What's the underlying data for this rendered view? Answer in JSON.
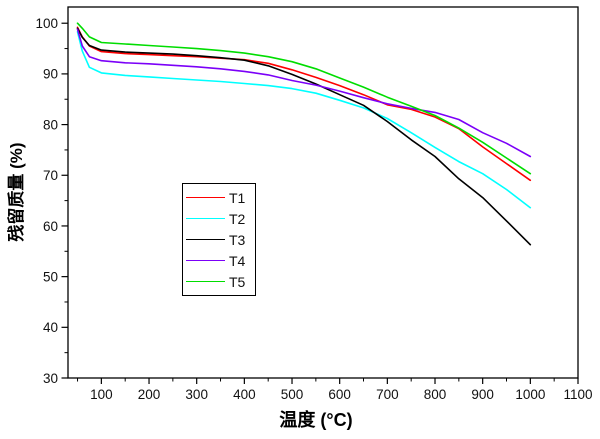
{
  "chart_data": {
    "type": "line",
    "title": "",
    "xlabel": "温度 (°C)",
    "ylabel": "残留质量 (%)",
    "xlim": [
      30,
      1100
    ],
    "ylim": [
      30,
      103.2
    ],
    "xticks": [
      100,
      200,
      300,
      400,
      500,
      600,
      700,
      800,
      900,
      1000,
      1100
    ],
    "yticks": [
      30,
      40,
      50,
      60,
      70,
      80,
      90,
      100
    ],
    "x_minor_ticks": [
      50,
      150,
      250,
      350,
      450,
      550,
      650,
      750,
      850,
      950,
      1050
    ],
    "y_minor_ticks": [
      35,
      45,
      55,
      65,
      75,
      85,
      95
    ],
    "grid": false,
    "legend_position": "inside-center-left",
    "frame_color": "#000000",
    "background_color": "#ffffff",
    "x": [
      50,
      60,
      75,
      100,
      150,
      200,
      250,
      300,
      350,
      400,
      450,
      500,
      550,
      600,
      650,
      700,
      750,
      800,
      850,
      900,
      950,
      1000
    ],
    "series": [
      {
        "name": "T1",
        "color": "#ff0000",
        "values": [
          99.2,
          97.3,
          95.5,
          94.4,
          94.0,
          93.8,
          93.6,
          93.4,
          93.1,
          92.8,
          92.1,
          90.8,
          89.3,
          87.7,
          85.9,
          83.9,
          83.0,
          81.5,
          79.2,
          75.6,
          72.3,
          69.0
        ]
      },
      {
        "name": "T2",
        "color": "#00ffff",
        "values": [
          98.3,
          94.5,
          91.3,
          90.2,
          89.7,
          89.4,
          89.1,
          88.8,
          88.5,
          88.1,
          87.7,
          87.1,
          86.2,
          84.8,
          83.3,
          81.2,
          78.4,
          75.5,
          72.7,
          70.3,
          67.2,
          63.6
        ]
      },
      {
        "name": "T3",
        "color": "#000000",
        "values": [
          99.0,
          97.2,
          95.6,
          94.7,
          94.3,
          94.1,
          93.9,
          93.6,
          93.2,
          92.7,
          91.6,
          89.9,
          88.0,
          85.9,
          83.8,
          80.6,
          77.0,
          73.7,
          69.3,
          65.6,
          61.0,
          56.3
        ]
      },
      {
        "name": "T4",
        "color": "#7b00f8",
        "values": [
          98.8,
          95.5,
          93.4,
          92.6,
          92.2,
          92.0,
          91.7,
          91.4,
          91.0,
          90.5,
          89.8,
          88.7,
          87.8,
          86.6,
          85.3,
          84.1,
          83.2,
          82.4,
          81.0,
          78.4,
          76.3,
          73.7
        ]
      },
      {
        "name": "T5",
        "color": "#00dd00",
        "values": [
          100.0,
          99.0,
          97.3,
          96.2,
          95.9,
          95.6,
          95.3,
          95.0,
          94.6,
          94.1,
          93.4,
          92.4,
          91.0,
          89.2,
          87.4,
          85.4,
          83.6,
          81.8,
          79.3,
          76.5,
          73.4,
          70.3
        ]
      }
    ]
  },
  "style": {
    "tick_label_color": "#111111",
    "tick_label_size": 13.5,
    "line_width": 1.6,
    "frame_width": 1.3
  }
}
